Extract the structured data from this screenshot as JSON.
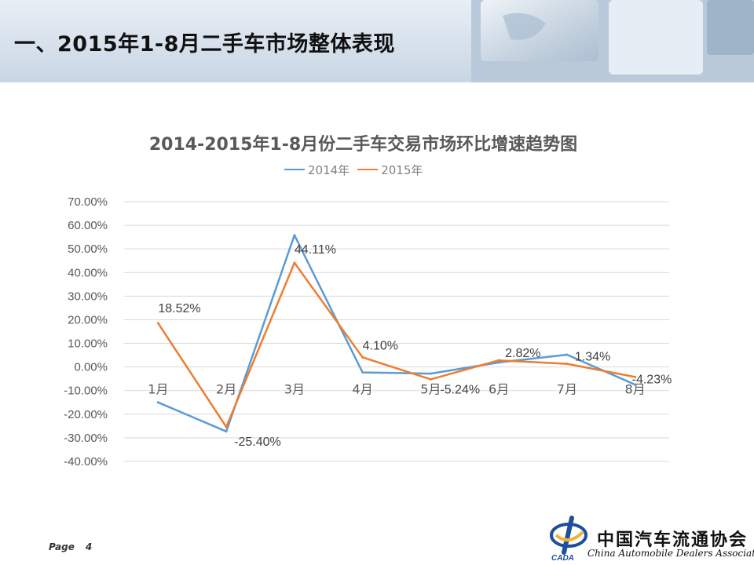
{
  "slide": {
    "title": "一、2015年1-8月二手车市场整体表现",
    "page_label": "Page",
    "page_number": "4"
  },
  "logo": {
    "name_cn": "中国汽车流通协会",
    "name_en": "China Automobile Dealers Association",
    "mark_text": "CADA"
  },
  "chart_data": {
    "type": "line",
    "title": "2014-2015年1-8月份二手车交易市场环比增速趋势图",
    "categories": [
      "1月",
      "2月",
      "3月",
      "4月",
      "5月",
      "6月",
      "7月",
      "8月"
    ],
    "yticks": [
      "70.00%",
      "60.00%",
      "50.00%",
      "40.00%",
      "30.00%",
      "20.00%",
      "10.00%",
      "0.00%",
      "-10.00%",
      "-20.00%",
      "-30.00%",
      "-40.00%"
    ],
    "ylim": [
      -40,
      70
    ],
    "grid": true,
    "legend_position": "top",
    "series": [
      {
        "name": "2014年",
        "color": "#5b9bd5",
        "values": [
          -15.0,
          -27.3,
          55.8,
          -2.3,
          -2.8,
          1.9,
          5.2,
          -7.5
        ],
        "labels": []
      },
      {
        "name": "2015年",
        "color": "#ed7d31",
        "values": [
          18.52,
          -25.4,
          44.11,
          4.1,
          -5.24,
          2.82,
          1.34,
          -4.23
        ],
        "labels": [
          "18.52%",
          "-25.40%",
          "44.11%",
          "4.10%",
          "-5.24%",
          "2.82%",
          "1.34%",
          "-4.23%"
        ]
      }
    ]
  }
}
